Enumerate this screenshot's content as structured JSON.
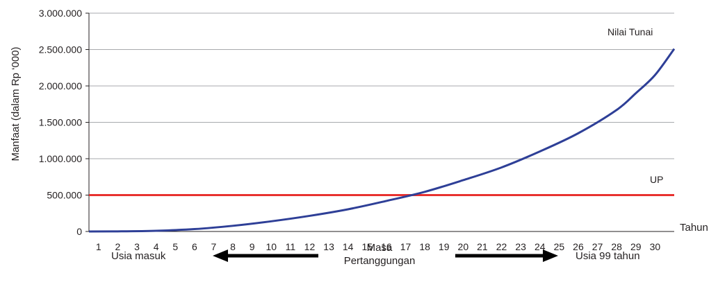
{
  "chart_data": {
    "type": "line",
    "title": "",
    "xlabel": "Tahun",
    "ylabel": "Manfaat (dalam Rp ‘000)",
    "ylim": [
      0,
      3000000
    ],
    "xlim": [
      0.5,
      31
    ],
    "y_ticks": [
      "3.000.000",
      "2.500.000",
      "2.000.000",
      "1.500.000",
      "1.000.000",
      "500.000",
      "0"
    ],
    "y_tick_values": [
      3000000,
      2500000,
      2000000,
      1500000,
      1000000,
      500000,
      0
    ],
    "x_ticks": [
      "1",
      "2",
      "3",
      "4",
      "5",
      "6",
      "7",
      "8",
      "9",
      "10",
      "11",
      "12",
      "13",
      "14",
      "15",
      "16",
      "17",
      "18",
      "19",
      "20",
      "21",
      "22",
      "23",
      "24",
      "25",
      "26",
      "27",
      "28",
      "29",
      "30"
    ],
    "grid": true,
    "series": [
      {
        "name": "Nilai Tunai",
        "color": "#2e3f97",
        "x": [
          0.5,
          2,
          4,
          6,
          8,
          10,
          12,
          14,
          16,
          18,
          20,
          22,
          24,
          26,
          28,
          29,
          30,
          31
        ],
        "values": [
          0,
          1500,
          10000,
          33000,
          78000,
          140000,
          215000,
          305000,
          420000,
          545000,
          705000,
          880000,
          1100000,
          1350000,
          1670000,
          1900000,
          2150000,
          2510000
        ]
      },
      {
        "name": "UP",
        "color": "#e8312f",
        "x": [
          0.5,
          31
        ],
        "values": [
          500000,
          500000
        ]
      }
    ],
    "annotations": {
      "left": "Usia masuk",
      "center_line1": "Masa",
      "center_line2": "Pertanggungan",
      "right": "Usia 99 tahun"
    }
  }
}
